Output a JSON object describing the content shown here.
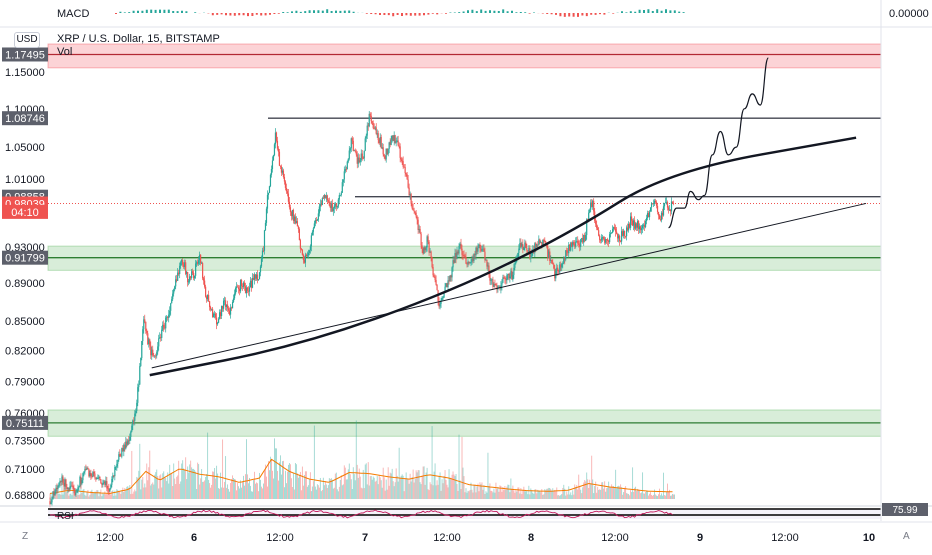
{
  "chart_data": {
    "type": "candlestick",
    "title": "XRP / U.S. Dollar, 15, BITSTAMP",
    "currency": "USD",
    "indicators": {
      "top": "MACD",
      "volume": "Vol",
      "bottom": "RSI"
    },
    "macd_axis_value": "0.00000",
    "rsi_value": "75.99",
    "y_axis": {
      "scale": "log",
      "range": [
        0.679,
        1.19
      ],
      "ticks": [
        "1.15000",
        "1.10000",
        "1.05000",
        "1.01000",
        "0.93000",
        "0.89000",
        "0.85000",
        "0.82000",
        "0.79000",
        "0.76000",
        "0.73500",
        "0.71000",
        "0.68800"
      ]
    },
    "x_axis": {
      "ticks": [
        "12:00",
        "6",
        "12:00",
        "7",
        "12:00",
        "8",
        "12:00",
        "9",
        "12:00",
        "10"
      ],
      "bold_ticks": [
        "6",
        "7",
        "8",
        "9",
        "10"
      ]
    },
    "price_labels": [
      {
        "value": "1.17495",
        "y": 1.17495,
        "bg": "#5d606b"
      },
      {
        "value": "1.08746",
        "y": 1.08746,
        "bg": "#5d606b"
      },
      {
        "value": "0.98858",
        "y": 0.98858,
        "bg": "#5d606b"
      },
      {
        "value": "0.98039",
        "y": 0.98039,
        "bg": "#ef5350"
      },
      {
        "value": "04:10",
        "y": 0.9705,
        "bg": "#ef5350"
      },
      {
        "value": "0.91799",
        "y": 0.91799,
        "bg": "#5d606b"
      },
      {
        "value": "0.75111",
        "y": 0.75111,
        "bg": "#5d606b"
      }
    ],
    "zones": [
      {
        "from": 1.156,
        "to": 1.19,
        "color": "#f23645"
      },
      {
        "from": 0.904,
        "to": 0.931,
        "color": "#4caf50"
      },
      {
        "from": 0.739,
        "to": 0.763,
        "color": "#4caf50"
      }
    ],
    "levels": [
      1.17495,
      1.08746,
      0.98858,
      0.91799,
      0.75111
    ],
    "current_price": 0.98039,
    "price_path": [
      [
        0,
        0.683
      ],
      [
        12,
        0.7
      ],
      [
        24,
        0.69
      ],
      [
        36,
        0.71
      ],
      [
        48,
        0.7
      ],
      [
        60,
        0.694
      ],
      [
        68,
        0.72
      ],
      [
        78,
        0.735
      ],
      [
        86,
        0.76
      ],
      [
        90,
        0.8
      ],
      [
        94,
        0.85
      ],
      [
        98,
        0.83
      ],
      [
        104,
        0.81
      ],
      [
        112,
        0.84
      ],
      [
        120,
        0.86
      ],
      [
        126,
        0.89
      ],
      [
        132,
        0.92
      ],
      [
        138,
        0.895
      ],
      [
        144,
        0.9
      ],
      [
        150,
        0.92
      ],
      [
        156,
        0.88
      ],
      [
        162,
        0.86
      ],
      [
        168,
        0.85
      ],
      [
        174,
        0.87
      ],
      [
        180,
        0.86
      ],
      [
        186,
        0.88
      ],
      [
        192,
        0.89
      ],
      [
        198,
        0.88
      ],
      [
        204,
        0.895
      ],
      [
        210,
        0.9
      ],
      [
        214,
        0.93
      ],
      [
        218,
        0.985
      ],
      [
        222,
        1.02
      ],
      [
        226,
        1.07
      ],
      [
        230,
        1.03
      ],
      [
        234,
        1.01
      ],
      [
        238,
        0.99
      ],
      [
        242,
        0.97
      ],
      [
        246,
        0.96
      ],
      [
        250,
        0.94
      ],
      [
        254,
        0.91
      ],
      [
        260,
        0.93
      ],
      [
        266,
        0.96
      ],
      [
        272,
        0.98
      ],
      [
        278,
        0.99
      ],
      [
        284,
        0.97
      ],
      [
        290,
        0.985
      ],
      [
        296,
        1.02
      ],
      [
        302,
        1.06
      ],
      [
        308,
        1.03
      ],
      [
        314,
        1.04
      ],
      [
        320,
        1.09
      ],
      [
        326,
        1.07
      ],
      [
        330,
        1.06
      ],
      [
        336,
        1.04
      ],
      [
        342,
        1.06
      ],
      [
        348,
        1.06
      ],
      [
        352,
        1.03
      ],
      [
        356,
        1.02
      ],
      [
        360,
        0.99
      ],
      [
        366,
        0.97
      ],
      [
        370,
        0.95
      ],
      [
        374,
        0.92
      ],
      [
        378,
        0.94
      ],
      [
        384,
        0.9
      ],
      [
        390,
        0.87
      ],
      [
        394,
        0.88
      ],
      [
        400,
        0.89
      ],
      [
        406,
        0.92
      ],
      [
        412,
        0.93
      ],
      [
        418,
        0.91
      ],
      [
        424,
        0.92
      ],
      [
        430,
        0.93
      ],
      [
        436,
        0.92
      ],
      [
        440,
        0.9
      ],
      [
        446,
        0.885
      ],
      [
        452,
        0.89
      ],
      [
        458,
        0.895
      ],
      [
        464,
        0.9
      ],
      [
        470,
        0.93
      ],
      [
        476,
        0.93
      ],
      [
        482,
        0.92
      ],
      [
        488,
        0.935
      ],
      [
        494,
        0.935
      ],
      [
        500,
        0.92
      ],
      [
        506,
        0.9
      ],
      [
        512,
        0.91
      ],
      [
        518,
        0.925
      ],
      [
        524,
        0.935
      ],
      [
        530,
        0.93
      ],
      [
        536,
        0.94
      ],
      [
        540,
        0.975
      ],
      [
        544,
        0.98
      ],
      [
        548,
        0.95
      ],
      [
        552,
        0.94
      ],
      [
        558,
        0.935
      ],
      [
        564,
        0.95
      ],
      [
        570,
        0.94
      ],
      [
        576,
        0.945
      ],
      [
        582,
        0.96
      ],
      [
        588,
        0.955
      ],
      [
        594,
        0.95
      ],
      [
        600,
        0.97
      ],
      [
        604,
        0.985
      ],
      [
        608,
        0.98
      ],
      [
        612,
        0.96
      ],
      [
        617,
        0.98
      ],
      [
        621,
        0.975
      ],
      [
        625,
        0.98039
      ]
    ],
    "volume_path": [
      [
        0,
        0.1
      ],
      [
        20,
        0.16
      ],
      [
        40,
        0.12
      ],
      [
        60,
        0.1
      ],
      [
        80,
        0.18
      ],
      [
        96,
        0.5
      ],
      [
        110,
        0.34
      ],
      [
        130,
        0.55
      ],
      [
        150,
        0.45
      ],
      [
        170,
        0.4
      ],
      [
        190,
        0.3
      ],
      [
        210,
        0.38
      ],
      [
        222,
        0.72
      ],
      [
        240,
        0.5
      ],
      [
        260,
        0.36
      ],
      [
        280,
        0.3
      ],
      [
        300,
        0.48
      ],
      [
        320,
        0.46
      ],
      [
        340,
        0.4
      ],
      [
        360,
        0.36
      ],
      [
        380,
        0.44
      ],
      [
        400,
        0.38
      ],
      [
        420,
        0.26
      ],
      [
        440,
        0.22
      ],
      [
        460,
        0.18
      ],
      [
        480,
        0.15
      ],
      [
        500,
        0.14
      ],
      [
        520,
        0.16
      ],
      [
        540,
        0.28
      ],
      [
        560,
        0.22
      ],
      [
        580,
        0.18
      ],
      [
        600,
        0.14
      ],
      [
        625,
        0.13
      ]
    ],
    "trend_lines": [
      {
        "kind": "line",
        "from": [
          102,
          0.803
        ],
        "to": [
          818,
          0.9805
        ],
        "width": 1
      },
      {
        "kind": "curve",
        "points": [
          [
            100,
            0.796
          ],
          [
            250,
            0.825
          ],
          [
            400,
            0.88
          ],
          [
            520,
            0.945
          ],
          [
            620,
            1.02
          ],
          [
            808,
            1.062
          ]
        ],
        "width": 2.5
      }
    ],
    "projection": [
      [
        620,
        0.952
      ],
      [
        628,
        0.975
      ],
      [
        636,
        0.975
      ],
      [
        642,
        0.995
      ],
      [
        650,
        0.985
      ],
      [
        656,
        0.99
      ],
      [
        664,
        1.04
      ],
      [
        672,
        1.07
      ],
      [
        680,
        1.04
      ],
      [
        688,
        1.05
      ],
      [
        696,
        1.1
      ],
      [
        704,
        1.12
      ],
      [
        712,
        1.105
      ],
      [
        720,
        1.17
      ]
    ]
  }
}
